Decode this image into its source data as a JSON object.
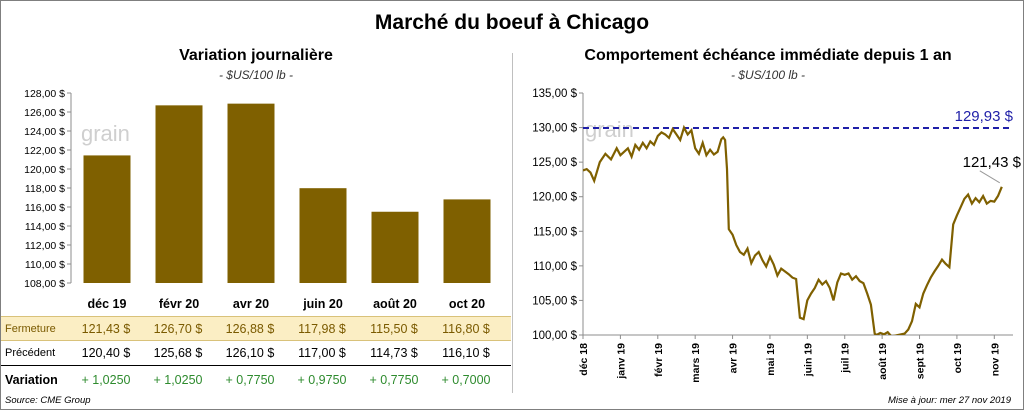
{
  "title": "Marché du boeuf à Chicago",
  "left_panel": {
    "title": "Variation  journalière",
    "subtitle": "- $US/100 lb -",
    "watermark": "grain",
    "table": {
      "rows": [
        {
          "label": "Fermeture",
          "values": [
            "121,43  $",
            "126,70  $",
            "126,88  $",
            "117,98  $",
            "115,50  $",
            "116,80  $"
          ]
        },
        {
          "label": "Précédent",
          "values": [
            "120,40  $",
            "125,68  $",
            "126,10  $",
            "117,00  $",
            "114,73  $",
            "116,10  $"
          ]
        },
        {
          "label": "Variation",
          "values": [
            "+ 1,0250",
            "+ 1,0250",
            "+ 0,7750",
            "+ 0,9750",
            "+ 0,7750",
            "+ 0,7000"
          ]
        }
      ]
    }
  },
  "right_panel": {
    "title": "Comportement  échéance immédiate depuis 1 an",
    "subtitle": "- $US/100 lb -",
    "watermark": "grain",
    "reference_label": "129,93 $",
    "last_label": "121,43 $"
  },
  "footer": {
    "source": "Source: CME Group",
    "updated": "Mise à jour: mer 27 nov 2019"
  },
  "colors": {
    "bar": "#7f6000",
    "line": "#7f6000",
    "reference": "#1f1fa8",
    "positive": "#2e8b2e"
  },
  "chart_data": [
    {
      "type": "bar",
      "categories": [
        "déc 19",
        "févr 20",
        "avr 20",
        "juin 20",
        "août 20",
        "oct 20"
      ],
      "values": [
        121.43,
        126.7,
        126.88,
        117.98,
        115.5,
        116.8
      ],
      "ylim": [
        108,
        128
      ],
      "yticks": [
        "108,00 $",
        "110,00 $",
        "112,00 $",
        "114,00 $",
        "116,00 $",
        "118,00 $",
        "120,00 $",
        "122,00 $",
        "124,00 $",
        "126,00 $",
        "128,00 $"
      ],
      "ytick_values": [
        108,
        110,
        112,
        114,
        116,
        118,
        120,
        122,
        124,
        126,
        128
      ],
      "grid": false
    },
    {
      "type": "line",
      "ylim": [
        100,
        135
      ],
      "yticks": [
        "100,00 $",
        "105,00 $",
        "110,00 $",
        "115,00 $",
        "120,00 $",
        "125,00 $",
        "130,00 $",
        "135,00 $"
      ],
      "ytick_values": [
        100,
        105,
        110,
        115,
        120,
        125,
        130,
        135
      ],
      "xticks": [
        "déc 18",
        "janv 19",
        "févr 19",
        "mars 19",
        "avr 19",
        "mai 19",
        "juin 19",
        "juil 19",
        "août 19",
        "sept 19",
        "oct 19",
        "nov 19"
      ],
      "reference_value": 129.93,
      "series": [
        {
          "x": [
            0,
            0.1,
            0.2,
            0.3,
            0.45,
            0.6,
            0.75,
            0.9,
            1.0,
            1.1,
            1.2,
            1.3,
            1.4,
            1.5,
            1.6,
            1.7,
            1.8,
            1.9,
            2.0,
            2.1,
            2.2,
            2.3,
            2.4,
            2.5,
            2.6,
            2.7,
            2.8,
            2.9,
            3.0,
            3.1,
            3.2,
            3.3,
            3.4,
            3.5,
            3.6,
            3.7,
            3.75,
            3.8,
            3.85,
            3.9,
            4.0,
            4.1,
            4.2,
            4.3,
            4.4,
            4.5,
            4.6,
            4.7,
            4.8,
            4.9,
            5.0,
            5.1,
            5.2,
            5.3,
            5.4,
            5.5,
            5.6,
            5.7,
            5.8,
            5.9,
            6.0,
            6.1,
            6.2,
            6.3,
            6.4,
            6.5,
            6.6,
            6.7,
            6.8,
            6.9,
            7.0,
            7.1,
            7.2,
            7.3,
            7.4,
            7.5,
            7.6,
            7.7,
            7.8,
            7.85,
            7.95,
            8.05,
            8.15,
            8.25,
            8.6,
            8.7,
            8.8,
            8.9,
            9.0,
            9.1,
            9.2,
            9.3,
            9.4,
            9.5,
            9.6,
            9.7,
            9.8,
            9.9,
            10.0,
            10.1,
            10.2,
            10.3,
            10.4,
            10.5,
            10.6,
            10.7,
            10.8,
            10.9,
            11.0,
            11.1,
            11.2
          ],
          "values": [
            123.8,
            124.0,
            123.5,
            122.3,
            125.0,
            126.2,
            125.4,
            127.0,
            126.0,
            126.5,
            127.0,
            125.8,
            127.5,
            126.8,
            127.8,
            127.0,
            128.0,
            127.5,
            128.8,
            129.3,
            129.0,
            128.5,
            129.8,
            129.0,
            128.2,
            130.0,
            129.0,
            129.6,
            127.0,
            126.2,
            127.8,
            126.0,
            126.8,
            126.1,
            126.5,
            128.3,
            128.6,
            128.2,
            124.0,
            115.3,
            114.5,
            113.0,
            112.0,
            111.6,
            112.5,
            110.4,
            111.5,
            112.0,
            110.8,
            109.9,
            111.3,
            110.2,
            108.6,
            109.6,
            109.2,
            108.8,
            108.3,
            108.1,
            102.5,
            102.3,
            105.0,
            106.0,
            106.8,
            108.0,
            107.3,
            107.8,
            106.8,
            105.0,
            107.6,
            108.9,
            108.7,
            108.9,
            108.0,
            108.5,
            107.8,
            107.5,
            106.0,
            104.4,
            100.2,
            100.0,
            100.3,
            100.1,
            100.4,
            99.8,
            100.2,
            100.8,
            102.0,
            104.5,
            104.0,
            106.0,
            107.2,
            108.3,
            109.2,
            110.0,
            110.9,
            110.3,
            109.8,
            116.0,
            117.3,
            118.5,
            119.7,
            120.3,
            119.0,
            119.8,
            119.2,
            120.1,
            119.0,
            119.4,
            119.3,
            120.1,
            121.43
          ]
        }
      ],
      "grid": false
    }
  ]
}
